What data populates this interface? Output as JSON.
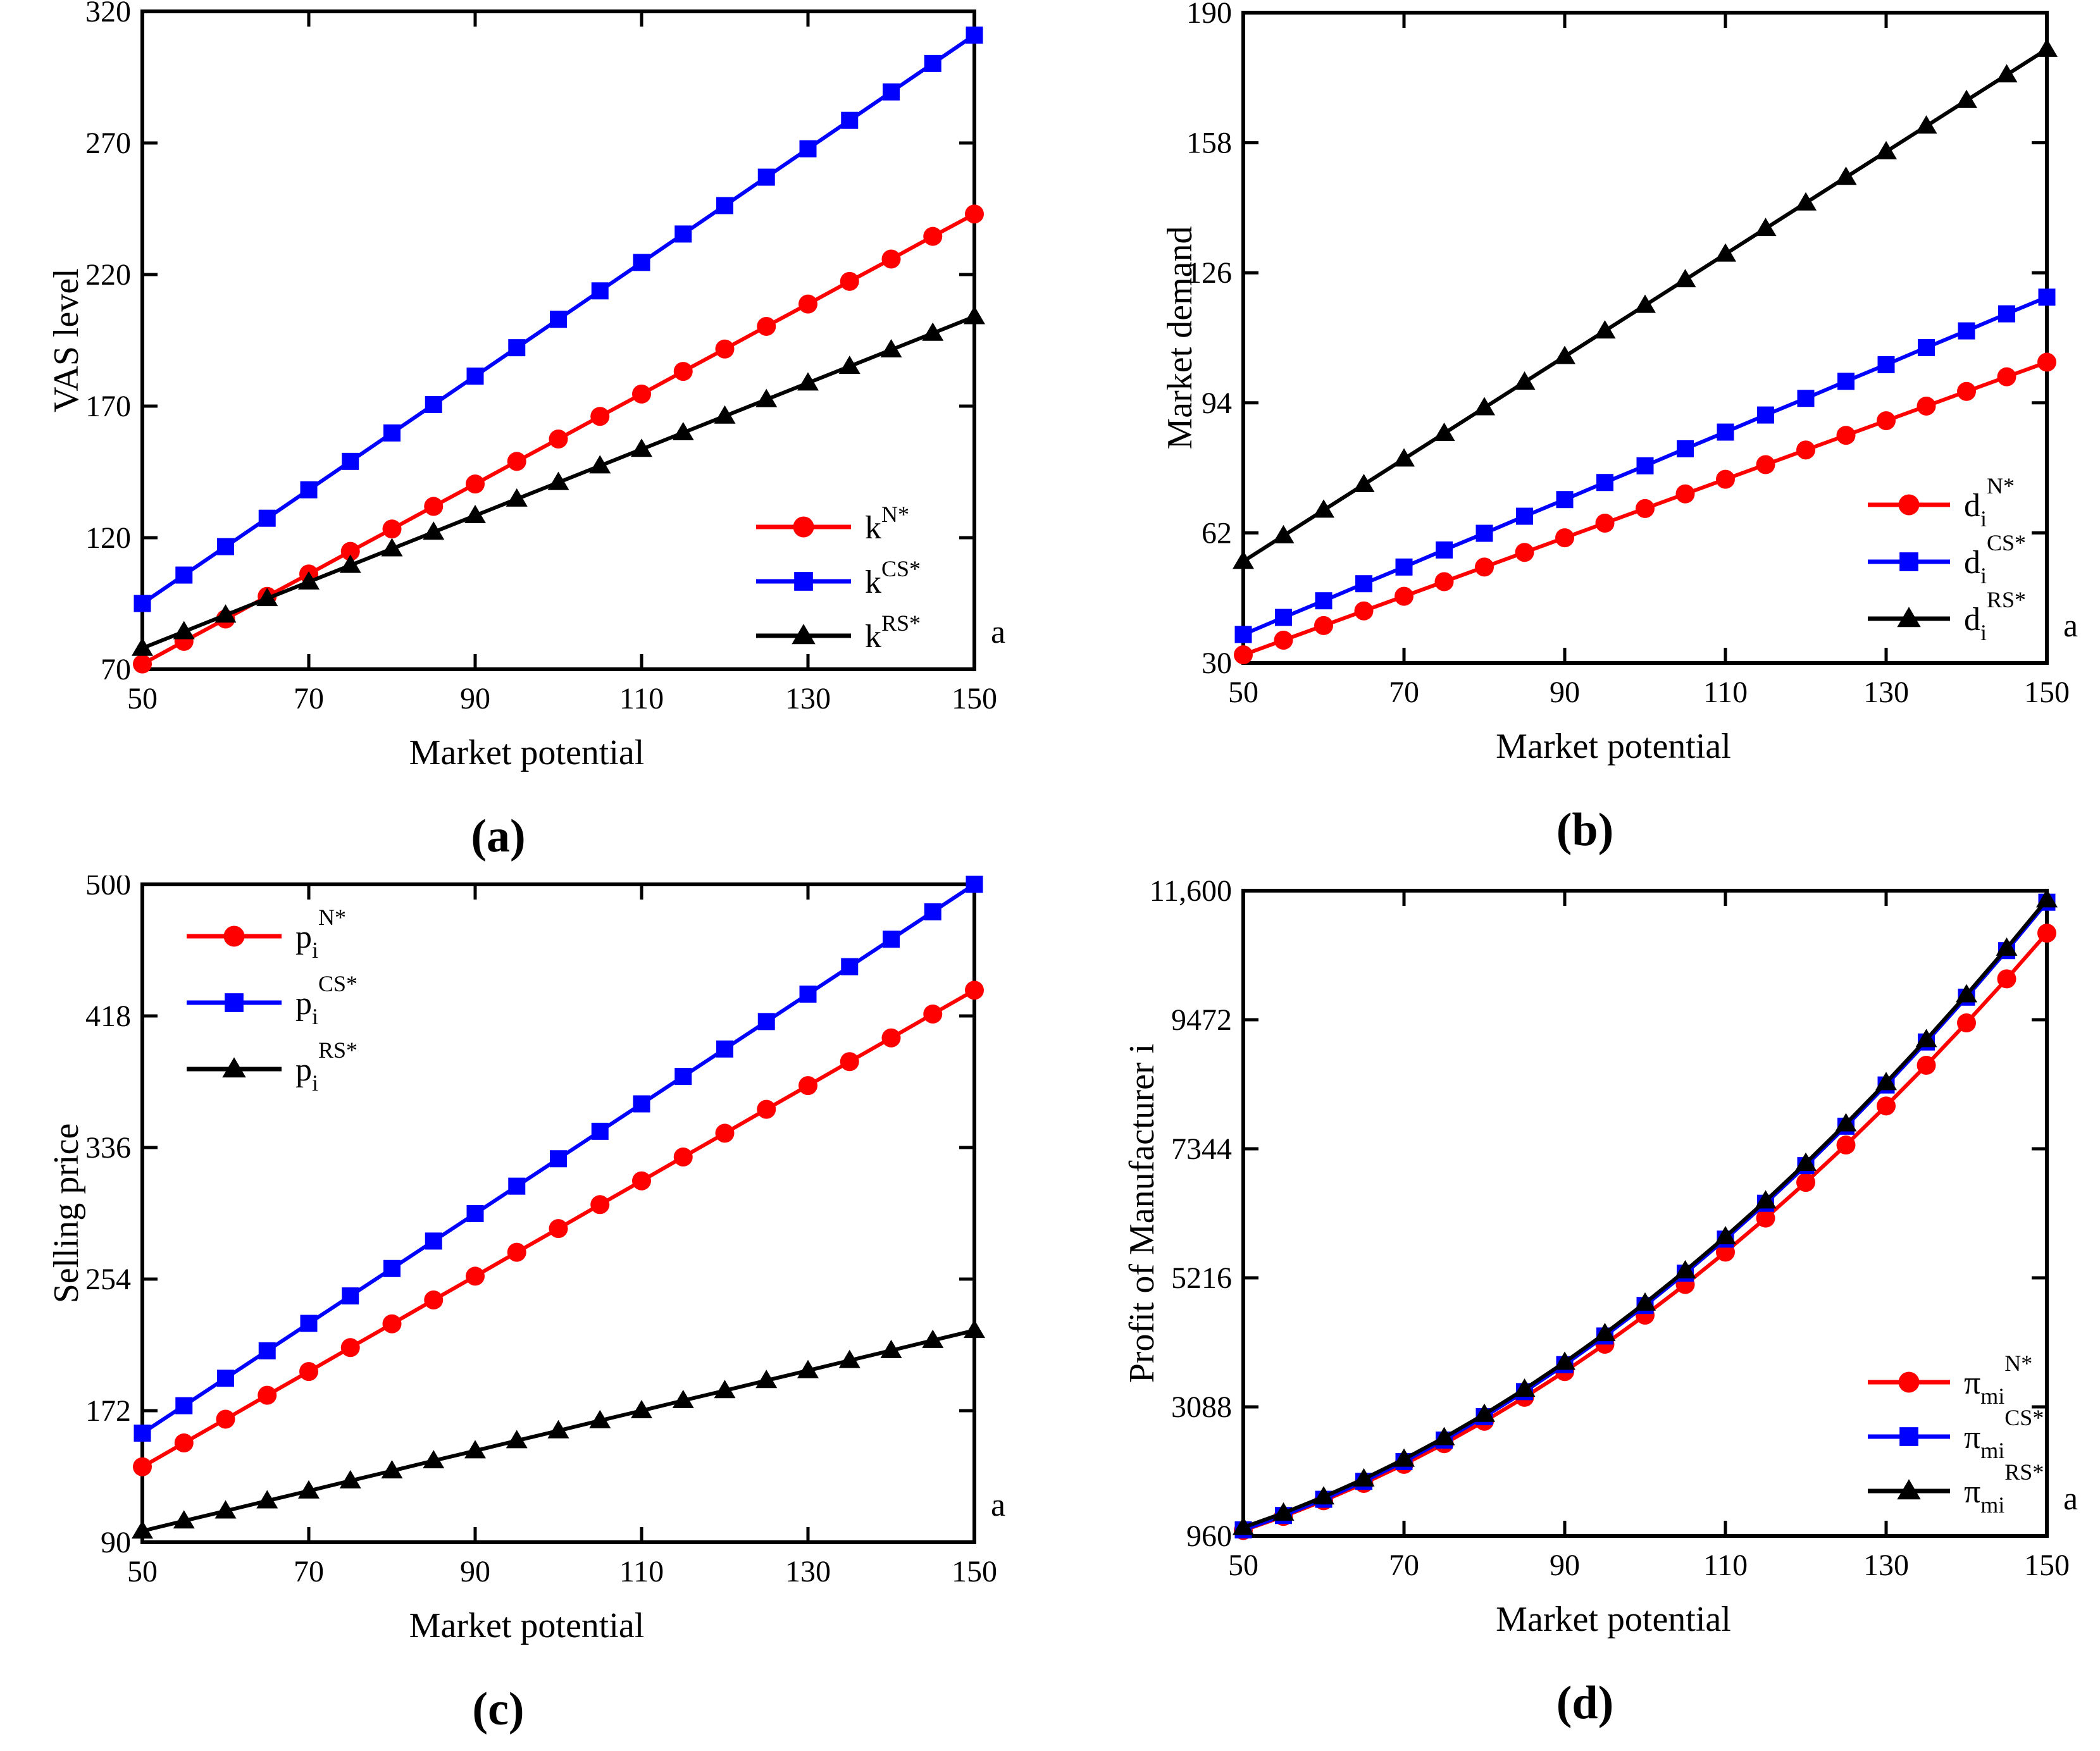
{
  "colors": {
    "red": "#fe0000",
    "blue": "#0000fe",
    "black": "#000000"
  },
  "x_values": [
    50,
    55,
    60,
    65,
    70,
    75,
    80,
    85,
    90,
    95,
    100,
    105,
    110,
    115,
    120,
    125,
    130,
    135,
    140,
    145,
    150
  ],
  "chart_data": [
    {
      "id": "a",
      "type": "line",
      "caption": "(a)",
      "xlabel": "Market potential",
      "ylabel": "VAS level",
      "xlim": [
        50,
        150
      ],
      "ylim": [
        70,
        320
      ],
      "x_tick_labels": [
        "50",
        "70",
        "90",
        "110",
        "130",
        "150"
      ],
      "x_tick_values": [
        50,
        70,
        90,
        110,
        130,
        150
      ],
      "x_tick_marks": [
        70,
        90,
        110,
        130
      ],
      "y_tick_labels": [
        "70",
        "120",
        "170",
        "220",
        "270",
        "320"
      ],
      "y_tick_values": [
        70,
        120,
        170,
        220,
        270,
        320
      ],
      "corner_label": "a",
      "grid": "off",
      "legend_position": "lower-right",
      "series": [
        {
          "key": "kN",
          "color_key": "red",
          "marker": "circle",
          "label_base": "k",
          "label_sub": "",
          "label_sup": "N*",
          "values": [
            72,
            80.6,
            89.1,
            97.7,
            106.2,
            114.8,
            123.3,
            131.9,
            140.4,
            149,
            157.5,
            166.1,
            174.6,
            183.2,
            191.7,
            200.3,
            208.8,
            217.4,
            225.9,
            234.5,
            243
          ]
        },
        {
          "key": "kCS",
          "color_key": "blue",
          "marker": "square",
          "label_base": "k",
          "label_sub": "",
          "label_sup": "CS*",
          "values": [
            95,
            105.8,
            116.6,
            127.4,
            138.2,
            149,
            159.8,
            170.6,
            181.4,
            192.2,
            203,
            213.8,
            224.6,
            235.4,
            246.2,
            257,
            267.8,
            278.6,
            289.4,
            300.2,
            311
          ]
        },
        {
          "key": "kRS",
          "color_key": "black",
          "marker": "triangle",
          "label_base": "k",
          "label_sub": "",
          "label_sup": "RS*",
          "values": [
            78,
            84.3,
            90.6,
            96.9,
            103.2,
            109.5,
            115.8,
            122.1,
            128.4,
            134.7,
            141,
            147.3,
            153.6,
            159.9,
            166.2,
            172.5,
            178.8,
            185.1,
            191.4,
            197.7,
            204
          ]
        }
      ]
    },
    {
      "id": "b",
      "type": "line",
      "caption": "(b)",
      "xlabel": "Market potential",
      "ylabel": "Market demand",
      "xlim": [
        50,
        150
      ],
      "ylim": [
        30,
        190
      ],
      "x_tick_labels": [
        "50",
        "70",
        "90",
        "110",
        "130",
        "150"
      ],
      "x_tick_values": [
        50,
        70,
        90,
        110,
        130,
        150
      ],
      "x_tick_marks": [
        70,
        90,
        110,
        130
      ],
      "y_tick_labels": [
        "30",
        "62",
        "94",
        "126",
        "158",
        "190"
      ],
      "y_tick_values": [
        30,
        62,
        94,
        126,
        158,
        190
      ],
      "corner_label": "a",
      "grid": "off",
      "legend_position": "lower-right",
      "series": [
        {
          "key": "dN",
          "color_key": "red",
          "marker": "circle",
          "label_base": "d",
          "label_sub": "i",
          "label_sup": "N*",
          "values": [
            32,
            35.6,
            39.2,
            42.8,
            46.4,
            50,
            53.6,
            57.2,
            60.8,
            64.4,
            68,
            71.6,
            75.2,
            78.8,
            82.4,
            86,
            89.6,
            93.2,
            96.8,
            100.4,
            104
          ]
        },
        {
          "key": "dCS",
          "color_key": "blue",
          "marker": "square",
          "label_base": "d",
          "label_sub": "i",
          "label_sup": "CS*",
          "values": [
            37,
            41.2,
            45.3,
            49.5,
            53.6,
            57.8,
            61.9,
            66.1,
            70.2,
            74.4,
            78.5,
            82.7,
            86.8,
            91,
            95.1,
            99.3,
            103.4,
            107.6,
            111.7,
            115.9,
            120
          ]
        },
        {
          "key": "dRS",
          "color_key": "black",
          "marker": "triangle",
          "label_base": "d",
          "label_sub": "i",
          "label_sup": "RS*",
          "values": [
            55,
            61.3,
            67.6,
            73.9,
            80.2,
            86.5,
            92.8,
            99.1,
            105.4,
            111.7,
            118,
            124.3,
            130.6,
            136.9,
            143.2,
            149.5,
            155.8,
            162.1,
            168.4,
            174.7,
            181
          ]
        }
      ]
    },
    {
      "id": "c",
      "type": "line",
      "caption": "(c)",
      "xlabel": "Market potential",
      "ylabel": "Selling price",
      "xlim": [
        50,
        150
      ],
      "ylim": [
        90,
        500
      ],
      "x_tick_labels": [
        "50",
        "70",
        "90",
        "110",
        "130",
        "150"
      ],
      "x_tick_values": [
        50,
        70,
        90,
        110,
        130,
        150
      ],
      "x_tick_marks": [
        70,
        90,
        110,
        130
      ],
      "y_tick_labels": [
        "90",
        "172",
        "254",
        "336",
        "418",
        "500"
      ],
      "y_tick_values": [
        90,
        172,
        254,
        336,
        418,
        500
      ],
      "corner_label": "a",
      "grid": "off",
      "legend_position": "upper-left",
      "series": [
        {
          "key": "pN",
          "color_key": "red",
          "marker": "circle",
          "label_base": "p",
          "label_sub": "i",
          "label_sup": "N*",
          "values": [
            137,
            151.9,
            166.7,
            181.6,
            196.4,
            211.3,
            226.1,
            241,
            255.8,
            270.7,
            285.5,
            300.4,
            315.2,
            330.1,
            344.9,
            359.8,
            374.6,
            389.5,
            404.3,
            419.2,
            434
          ]
        },
        {
          "key": "pCS",
          "color_key": "blue",
          "marker": "square",
          "label_base": "p",
          "label_sub": "i",
          "label_sup": "CS*",
          "values": [
            158,
            175.1,
            192.2,
            209.3,
            226.4,
            243.5,
            260.6,
            277.7,
            294.8,
            311.9,
            329,
            346.1,
            363.2,
            380.3,
            397.4,
            414.5,
            431.6,
            448.7,
            465.8,
            482.9,
            500
          ]
        },
        {
          "key": "pRS",
          "color_key": "black",
          "marker": "triangle",
          "label_base": "p",
          "label_sub": "i",
          "label_sup": "RS*",
          "values": [
            97,
            103.3,
            109.5,
            115.8,
            122,
            128.3,
            134.5,
            140.8,
            147,
            153.3,
            159.5,
            165.8,
            172,
            178.3,
            184.5,
            190.8,
            197,
            203.3,
            209.5,
            215.8,
            222
          ]
        }
      ]
    },
    {
      "id": "d",
      "type": "line",
      "caption": "(d)",
      "xlabel": "Market potential",
      "ylabel": "Profit of Manufacturer i",
      "xlim": [
        50,
        150
      ],
      "ylim": [
        960,
        11600
      ],
      "x_tick_labels": [
        "50",
        "70",
        "90",
        "110",
        "130",
        "150"
      ],
      "x_tick_values": [
        50,
        70,
        90,
        110,
        130,
        150
      ],
      "x_tick_marks": [
        70,
        90,
        110,
        130
      ],
      "y_tick_labels": [
        "960",
        "3088",
        "5216",
        "7344",
        "9472",
        "11,600"
      ],
      "y_tick_values": [
        960,
        3088,
        5216,
        7344,
        9472,
        11600
      ],
      "corner_label": "a",
      "grid": "off",
      "legend_position": "lower-right",
      "series": [
        {
          "key": "piN",
          "color_key": "red",
          "marker": "circle",
          "label_base": "π",
          "label_sub": "mi",
          "label_sup": "N*",
          "values": [
            1050,
            1281,
            1540,
            1826,
            2140,
            2481,
            2850,
            3246,
            3670,
            4121,
            4600,
            5106,
            5640,
            6201,
            6790,
            7406,
            8050,
            8721,
            9420,
            10146,
            10900
          ]
        },
        {
          "key": "piCS",
          "color_key": "blue",
          "marker": "square",
          "label_base": "π",
          "label_sub": "mi",
          "label_sup": "CS*",
          "values": [
            1060,
            1297,
            1564,
            1860,
            2186,
            2541,
            2926,
            3340,
            3784,
            4257,
            4760,
            5292,
            5854,
            6445,
            7066,
            7716,
            8396,
            9105,
            9844,
            10612,
            11410
          ]
        },
        {
          "key": "piRS",
          "color_key": "black",
          "marker": "triangle",
          "label_base": "π",
          "label_sub": "mi",
          "label_sup": "RS*",
          "values": [
            1100,
            1337,
            1604,
            1900,
            2226,
            2581,
            2966,
            3380,
            3824,
            4297,
            4800,
            5332,
            5894,
            6485,
            7106,
            7756,
            8436,
            9145,
            9884,
            10652,
            11450
          ]
        }
      ]
    }
  ]
}
